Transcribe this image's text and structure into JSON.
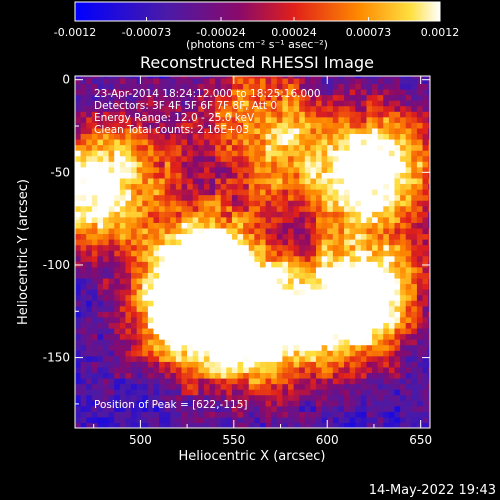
{
  "chart_data": {
    "type": "heatmap",
    "title": "Reconstructed RHESSI Image",
    "xlabel": "Heliocentric X (arcsec)",
    "ylabel": "Heliocentric Y (arcsec)",
    "xlim": [
      465,
      655
    ],
    "ylim": [
      -188,
      2
    ],
    "xticks": [
      500,
      550,
      600,
      650
    ],
    "yticks": [
      0,
      -50,
      -100,
      -150
    ],
    "colorbar": {
      "ticks": [
        "-0.0012",
        "-0.00073",
        "-0.00024",
        "0.00024",
        "0.00073",
        "0.0012"
      ],
      "tick_values": [
        -0.0012,
        -0.00073,
        -0.00024,
        0.00024,
        0.00073,
        0.0012
      ],
      "units_label": "(photons cm⁻² s⁻¹ asec⁻²)",
      "range": [
        -0.0012,
        0.0012
      ],
      "colormap": "blue-purple-red-orange-yellow-white"
    },
    "annotations": [
      "23-Apr-2014 18:24:12.000 to 18:25:16.000",
      "Detectors: 3F 4F 5F 6F 7F 8F, Att 0",
      "Energy Range: 12.0 - 25.0 keV",
      "Clean    Total counts: 2.16E+03"
    ],
    "peak_label": "Position of Peak = [622,-115]",
    "peak": {
      "x": 622,
      "y": -115
    },
    "hot_spots": [
      {
        "x": 470,
        "y": -60,
        "level": 1.0
      },
      {
        "x": 622,
        "y": -115,
        "level": 1.0
      },
      {
        "x": 545,
        "y": -115,
        "level": 0.95
      },
      {
        "x": 560,
        "y": -140,
        "level": 0.75
      },
      {
        "x": 530,
        "y": -95,
        "level": 0.7
      },
      {
        "x": 520,
        "y": -130,
        "level": 0.65
      },
      {
        "x": 575,
        "y": -40,
        "level": 0.55
      },
      {
        "x": 620,
        "y": -55,
        "level": 0.7
      },
      {
        "x": 635,
        "y": -40,
        "level": 0.55
      },
      {
        "x": 600,
        "y": -130,
        "level": 0.6
      },
      {
        "x": 500,
        "y": -40,
        "level": 0.4
      },
      {
        "x": 560,
        "y": -10,
        "level": 0.45
      }
    ]
  },
  "footer": {
    "datetime": "14-May-2022 19:43"
  }
}
